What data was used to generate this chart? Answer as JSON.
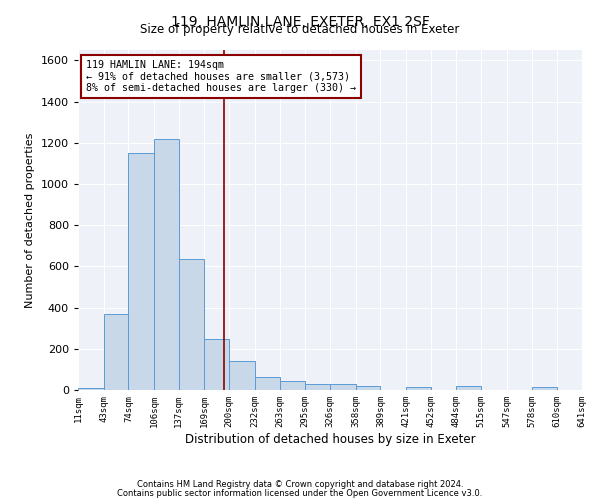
{
  "title": "119, HAMLIN LANE, EXETER, EX1 2SF",
  "subtitle": "Size of property relative to detached houses in Exeter",
  "xlabel": "Distribution of detached houses by size in Exeter",
  "ylabel": "Number of detached properties",
  "footnote1": "Contains HM Land Registry data © Crown copyright and database right 2024.",
  "footnote2": "Contains public sector information licensed under the Open Government Licence v3.0.",
  "annotation_line1": "119 HAMLIN LANE: 194sqm",
  "annotation_line2": "← 91% of detached houses are smaller (3,573)",
  "annotation_line3": "8% of semi-detached houses are larger (330) →",
  "bar_color": "#c8d8e8",
  "bar_edge_color": "#5b9bd5",
  "vline_color": "#8b0000",
  "background_color": "#eef2f8",
  "property_size": 194,
  "bin_edges": [
    11,
    43,
    74,
    106,
    137,
    169,
    200,
    232,
    263,
    295,
    326,
    358,
    389,
    421,
    452,
    484,
    515,
    547,
    578,
    610,
    641
  ],
  "bar_heights": [
    10,
    370,
    1150,
    1220,
    635,
    248,
    143,
    62,
    44,
    30,
    27,
    18,
    2,
    14,
    2,
    19,
    0,
    0,
    14,
    0
  ],
  "ylim": [
    0,
    1650
  ],
  "yticks": [
    0,
    200,
    400,
    600,
    800,
    1000,
    1200,
    1400,
    1600
  ],
  "tick_labels": [
    "11sqm",
    "43sqm",
    "74sqm",
    "106sqm",
    "137sqm",
    "169sqm",
    "200sqm",
    "232sqm",
    "263sqm",
    "295sqm",
    "326sqm",
    "358sqm",
    "389sqm",
    "421sqm",
    "452sqm",
    "484sqm",
    "515sqm",
    "547sqm",
    "578sqm",
    "610sqm",
    "641sqm"
  ]
}
